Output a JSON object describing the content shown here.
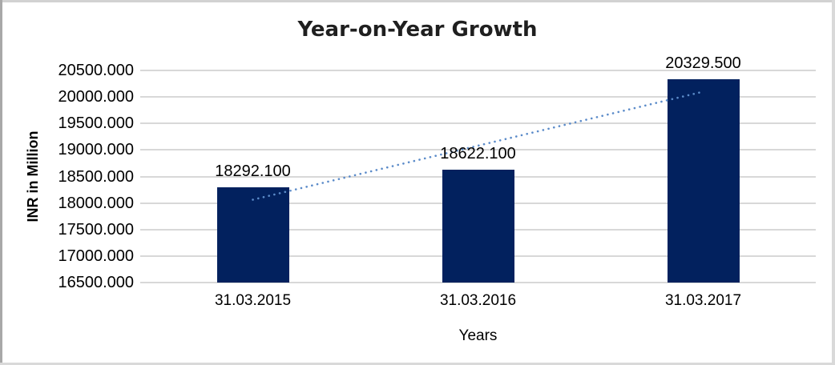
{
  "chart_data": {
    "type": "bar",
    "title": "Year-on-Year Growth",
    "xlabel": "Years",
    "ylabel": "INR in Million",
    "categories": [
      "31.03.2015",
      "31.03.2016",
      "31.03.2017"
    ],
    "values": [
      18292.1,
      18622.1,
      20329.5
    ],
    "data_labels": [
      "18292.100",
      "18622.100",
      "20329.500"
    ],
    "ylim": [
      16500,
      20500
    ],
    "ytick_labels": [
      "16500.000",
      "17000.000",
      "17500.000",
      "18000.000",
      "18500.000",
      "19000.000",
      "19500.000",
      "20000.000",
      "20500.000"
    ],
    "grid": true,
    "legend": false,
    "colors": {
      "bar": "#02215E",
      "gridline": "#D8D8D8",
      "trendline": "#5B8BC9",
      "title_text": "#1F1F1F",
      "label_text": "#000000"
    },
    "trendline": {
      "type": "linear",
      "style": "dotted",
      "start_value": 18062.5,
      "end_value": 20099.9
    }
  }
}
